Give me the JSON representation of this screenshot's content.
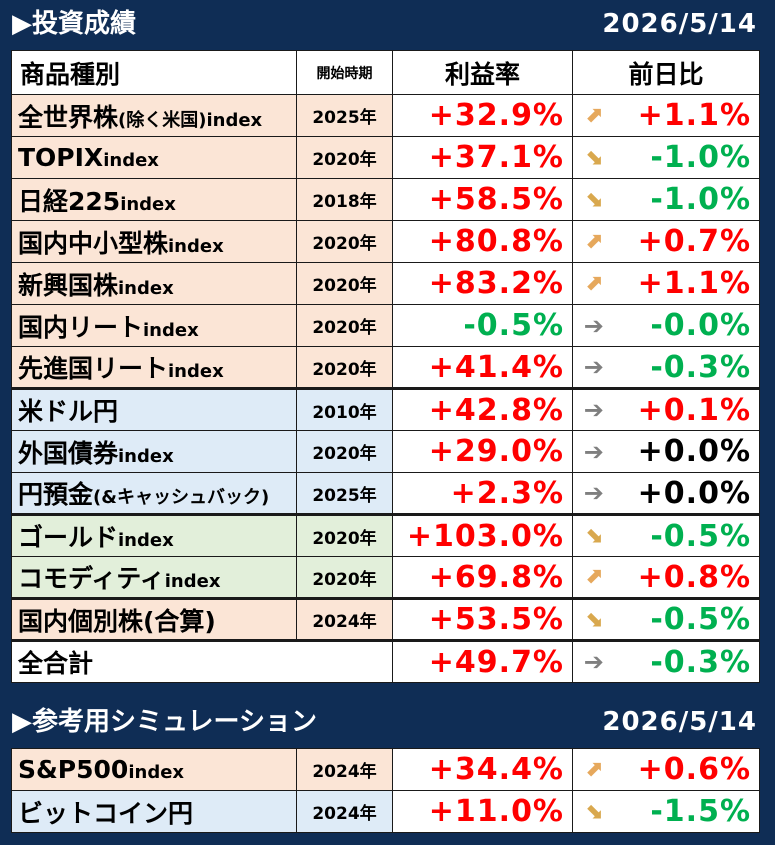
{
  "main": {
    "title": "▶投資成績",
    "date": "2026/5/14",
    "header": {
      "name": "商品種別",
      "start": "開始時期",
      "rate": "利益率",
      "diff": "前日比"
    },
    "rows": [
      {
        "name": "全世界株",
        "suffix": "(除く米国)index",
        "year": "2025年",
        "rate": "+32.9%",
        "trend": "up",
        "diff": "+1.1%"
      },
      {
        "name": "TOPIX",
        "suffix": "index",
        "year": "2020年",
        "rate": "+37.1%",
        "trend": "down",
        "diff": "-1.0%"
      },
      {
        "name": "日経225",
        "suffix": "index",
        "year": "2018年",
        "rate": "+58.5%",
        "trend": "down",
        "diff": "-1.0%"
      },
      {
        "name": "国内中小型株",
        "suffix": "index",
        "year": "2020年",
        "rate": "+80.8%",
        "trend": "up",
        "diff": "+0.7%"
      },
      {
        "name": "新興国株",
        "suffix": "index",
        "year": "2020年",
        "rate": "+83.2%",
        "trend": "up",
        "diff": "+1.1%"
      },
      {
        "name": "国内リート",
        "suffix": "index",
        "year": "2020年",
        "rate": "-0.5%",
        "trend": "flat",
        "diff": "-0.0%"
      },
      {
        "name": "先進国リート",
        "suffix": "index",
        "year": "2020年",
        "rate": "+41.4%",
        "trend": "flat",
        "diff": "-0.3%"
      },
      {
        "name": "米ドル円",
        "suffix": "",
        "year": "2010年",
        "rate": "+42.8%",
        "trend": "flat",
        "diff": "+0.1%"
      },
      {
        "name": "外国債券",
        "suffix": "index",
        "year": "2020年",
        "rate": "+29.0%",
        "trend": "flat",
        "diff": "+0.0%"
      },
      {
        "name": "円預金",
        "suffix": "(&キャッシュバック)",
        "year": "2025年",
        "rate": "+2.3%",
        "trend": "flat",
        "diff": "+0.0%"
      },
      {
        "name": "ゴールド",
        "suffix": "index",
        "year": "2020年",
        "rate": "+103.0%",
        "trend": "down",
        "diff": "-0.5%"
      },
      {
        "name": "コモディティ",
        "suffix": "index",
        "year": "2020年",
        "rate": "+69.8%",
        "trend": "up",
        "diff": "+0.8%"
      },
      {
        "name": "国内個別株(合算)",
        "suffix": "",
        "year": "2024年",
        "rate": "+53.5%",
        "trend": "down",
        "diff": "-0.5%"
      }
    ],
    "total": {
      "name": "全合計",
      "rate": "+49.7%",
      "trend": "flat",
      "diff": "-0.3%"
    }
  },
  "sim": {
    "title": "▶参考用シミュレーション",
    "date": "2026/5/14",
    "rows": [
      {
        "name": "S&P500",
        "suffix": "index",
        "year": "2024年",
        "rate": "+34.4%",
        "trend": "up",
        "diff": "+0.6%"
      },
      {
        "name": "ビットコイン円",
        "suffix": "",
        "year": "2024年",
        "rate": "+11.0%",
        "trend": "down",
        "diff": "-1.5%"
      }
    ]
  },
  "colors": {
    "background": "#0f2d55",
    "positive": "#ff0000",
    "negative": "#00b050",
    "neutral": "#000000",
    "orange_group": "#fbe5d6",
    "blue_group": "#deebf7",
    "green_group": "#e2efda"
  },
  "icons": {
    "up": "arrow-up-right-icon",
    "down": "arrow-down-right-icon",
    "flat": "arrow-right-icon"
  }
}
